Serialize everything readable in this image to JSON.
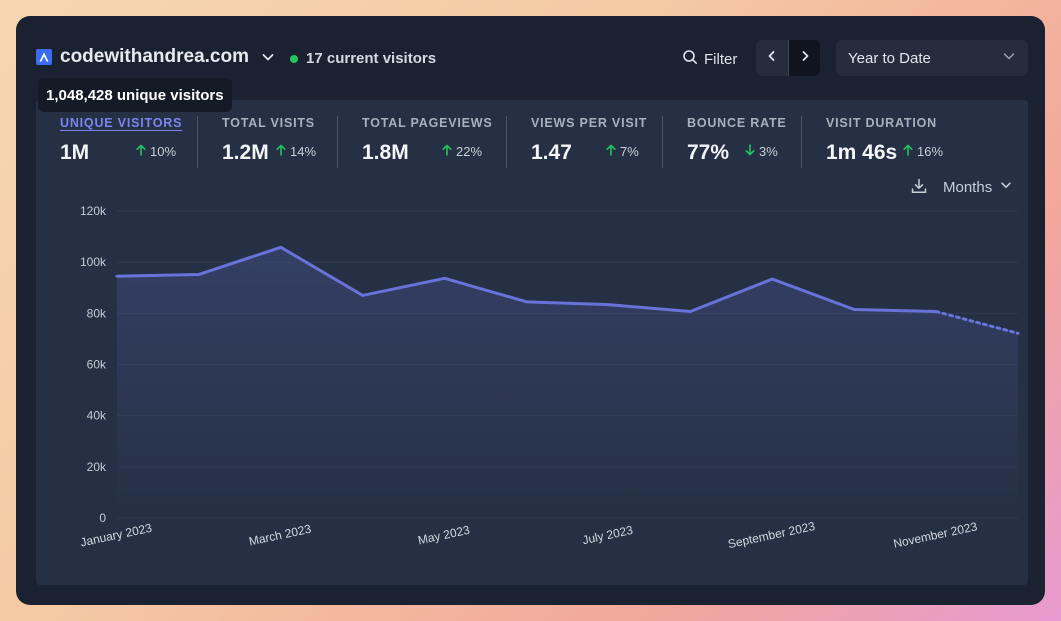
{
  "site": {
    "name": "codewithandrea.com",
    "logo_icon": "logo-a-icon"
  },
  "realtime": {
    "text": "17 current visitors"
  },
  "toolbar": {
    "filter_label": "Filter",
    "period_label": "Year to Date"
  },
  "tooltip": {
    "text": "1,048,428 unique visitors"
  },
  "stats": [
    {
      "label": "UNIQUE VISITORS",
      "value": "1M",
      "change": "10%",
      "direction": "up"
    },
    {
      "label": "TOTAL VISITS",
      "value": "1.2M",
      "change": "14%",
      "direction": "up"
    },
    {
      "label": "TOTAL PAGEVIEWS",
      "value": "1.8M",
      "change": "22%",
      "direction": "up"
    },
    {
      "label": "VIEWS PER VISIT",
      "value": "1.47",
      "change": "7%",
      "direction": "up"
    },
    {
      "label": "BOUNCE RATE",
      "value": "77%",
      "change": "3%",
      "direction": "down"
    },
    {
      "label": "VISIT DURATION",
      "value": "1m 46s",
      "change": "16%",
      "direction": "up"
    }
  ],
  "chart_controls": {
    "interval_label": "Months"
  },
  "colors": {
    "accent": "#6872d8",
    "up": "#22c55e",
    "panel": "#253044"
  },
  "chart_data": {
    "type": "area",
    "x": [
      "January 2023",
      "February 2023",
      "March 2023",
      "April 2023",
      "May 2023",
      "June 2023",
      "July 2023",
      "August 2023",
      "September 2023",
      "October 2023",
      "November 2023",
      "December 2023"
    ],
    "x_tick_labels": [
      "January 2023",
      "March 2023",
      "May 2023",
      "July 2023",
      "September 2023",
      "November 2023"
    ],
    "y_tick_labels": [
      "0",
      "20k",
      "40k",
      "60k",
      "80k",
      "100k",
      "120k"
    ],
    "ylim": [
      0,
      120000
    ],
    "series": [
      {
        "values": [
          94500,
          95200,
          105800,
          87000,
          93700,
          84500,
          83400,
          80700,
          93400,
          81500,
          80700,
          72200
        ]
      }
    ],
    "partial_last_point": true,
    "grid": true
  }
}
